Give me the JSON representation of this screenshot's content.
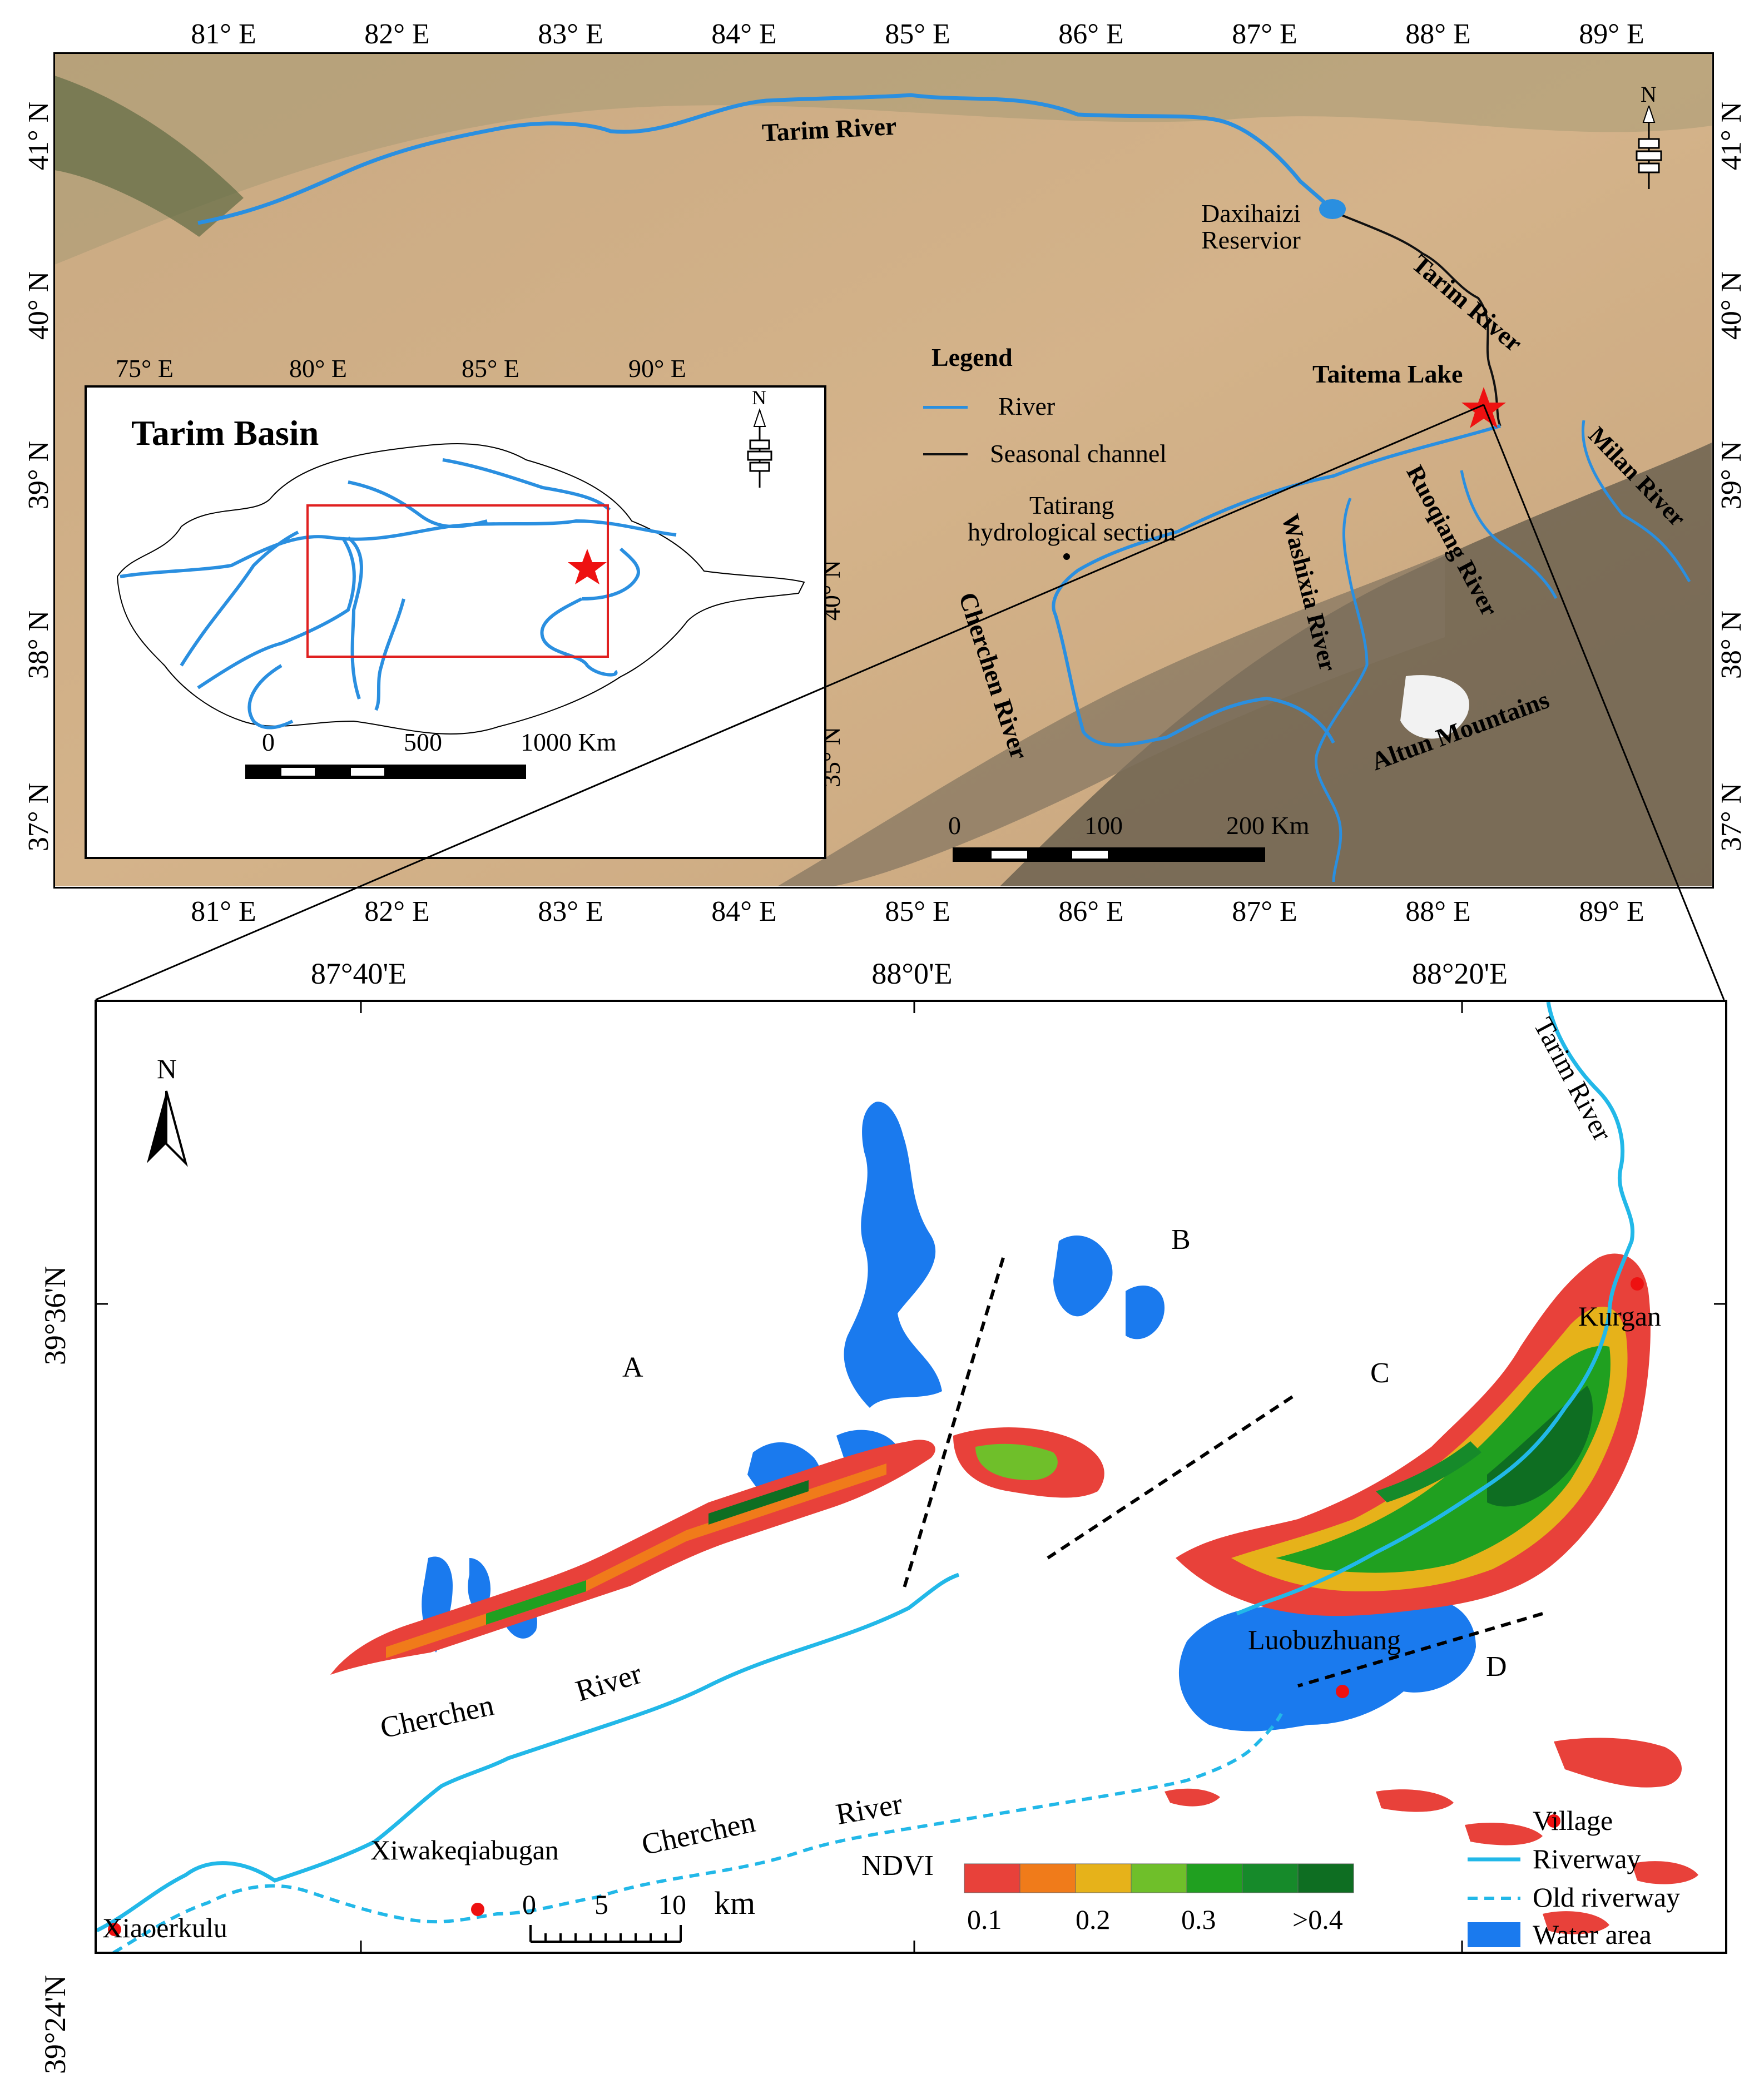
{
  "top_map": {
    "lon_ticks": [
      "81° E",
      "82° E",
      "83° E",
      "84° E",
      "85° E",
      "86° E",
      "87° E",
      "88° E",
      "89° E"
    ],
    "lat_ticks": [
      "41° N",
      "40° N",
      "39° N",
      "38° N",
      "37° N"
    ],
    "labels": {
      "tarim_river_1": "Tarim River",
      "tarim_river_2": "Tarim River",
      "daxihaizi": "Daxihaizi\nReservior",
      "taitema": "Taitema Lake",
      "tatirang": "Tatirang\nhydrological section",
      "cherchen": "Cherchen River",
      "washixia": "Washixia River",
      "ruoqiang": "Ruoqiang River",
      "milan": "Milan River",
      "altun": "Altun Mountains"
    },
    "legend": {
      "title": "Legend",
      "river": "River",
      "seasonal": "Seasonal channel"
    },
    "scale": {
      "labels": [
        "0",
        "100",
        "200 Km"
      ]
    },
    "north": "N"
  },
  "inset": {
    "title": "Tarim Basin",
    "lon_ticks": [
      "75° E",
      "80° E",
      "85° E",
      "90° E"
    ],
    "lat_ticks": [
      "40° N",
      "35° N"
    ],
    "scale": {
      "labels": [
        "0",
        "500",
        "1000 Km"
      ]
    },
    "north": "N"
  },
  "bottom_map": {
    "lon_ticks": [
      "87°40'E",
      "88°0'E",
      "88°20'E"
    ],
    "lat_ticks": [
      "39°36'N",
      "39°24'N"
    ],
    "north": "N",
    "zones": [
      "A",
      "B",
      "C",
      "D"
    ],
    "villages": [
      "Kurgan",
      "Luobuzhuang",
      "Xiwakeqiabugan",
      "Xiaoerkulu"
    ],
    "river_labels": {
      "tarim": "Tarim River",
      "cherchen_1": "Cherchen",
      "river_1": "River",
      "cherchen_2": "Cherchen",
      "river_2": "River"
    },
    "scale": {
      "labels": [
        "0",
        "5",
        "10"
      ],
      "unit": "km"
    },
    "ndvi": {
      "title": "NDVI",
      "colors": [
        "#e8413a",
        "#f07b1a",
        "#e6b21a",
        "#6fbf2a",
        "#20a020",
        "#168a2a",
        "#0e6e22"
      ],
      "labels": [
        "0.1",
        "0.2",
        "0.3",
        ">0.4"
      ]
    },
    "legend": {
      "village": "Village",
      "riverway": "Riverway",
      "old_riverway": "Old riverway",
      "water": "Water area"
    }
  },
  "colors": {
    "river": "#2a8fe0",
    "riverway": "#22b8e8",
    "water": "#1a7aee",
    "village": "#ee1111",
    "desert": "#cfae83"
  }
}
